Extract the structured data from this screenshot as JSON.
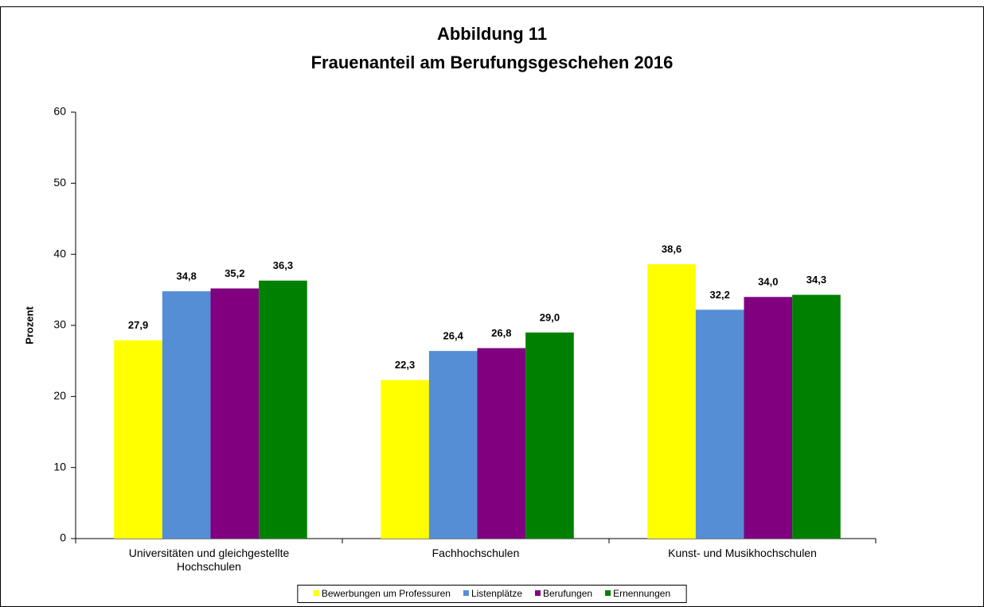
{
  "chart_data": {
    "type": "bar",
    "title": "Abbildung 11",
    "subtitle": "Frauenanteil am Berufungsgeschehen 2016",
    "y_label": "Prozent",
    "categories": [
      "Universitäten und gleichgestellte Hochschulen",
      "Fachhochschulen",
      "Kunst- und Musikhochschulen"
    ],
    "series": [
      {
        "name": "Bewerbungen um Professuren",
        "color": "#ffff00",
        "values": [
          27.9,
          22.3,
          38.6
        ],
        "value_labels": [
          "27,9",
          "22,3",
          "38,6"
        ]
      },
      {
        "name": "Listenplätze",
        "color": "#558ed5",
        "values": [
          34.8,
          26.4,
          32.2
        ],
        "value_labels": [
          "34,8",
          "26,4",
          "32,2"
        ]
      },
      {
        "name": "Berufungen",
        "color": "#800080",
        "values": [
          35.2,
          26.8,
          34.0
        ],
        "value_labels": [
          "35,2",
          "26,8",
          "34,0"
        ]
      },
      {
        "name": "Ernennungen",
        "color": "#008000",
        "values": [
          36.3,
          29.0,
          34.3
        ],
        "value_labels": [
          "36,3",
          "29,0",
          "34,3"
        ]
      }
    ],
    "ylim": [
      0,
      60
    ],
    "yticks": [
      0,
      10,
      20,
      30,
      40,
      50,
      60
    ],
    "grid": false,
    "legend": "bottom"
  }
}
